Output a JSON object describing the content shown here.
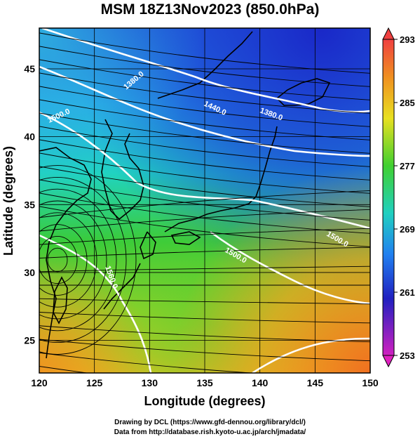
{
  "title": "MSM 18Z13Nov2023 (850.0hPa)",
  "x_axis": {
    "label": "Longitude (degrees)",
    "ticks": [
      "120",
      "125",
      "130",
      "135",
      "140",
      "145",
      "150"
    ],
    "range": [
      120,
      150
    ]
  },
  "y_axis": {
    "label": "Latitude  (degrees)",
    "ticks": [
      "25",
      "30",
      "35",
      "40",
      "45"
    ],
    "range": [
      22.6,
      48
    ]
  },
  "colorbar": {
    "ticks": [
      "293",
      "285",
      "277",
      "269",
      "261",
      "253"
    ],
    "range": [
      253,
      293
    ]
  },
  "contour_labels": [
    "1380.0",
    "1440.0",
    "1380.0",
    "1500.0",
    "1560.0",
    "1500.0",
    "1500.0"
  ],
  "credits": {
    "line1": "Drawing by DCL (https://www.gfd-dennou.org/library/dcl/)",
    "line2": "Data from http://database.rish.kyoto-u.ac.jp/arch/jmadata/"
  },
  "colors": {
    "cold": "#1a2fd0",
    "cyan": "#20d0e0",
    "green": "#30c830",
    "yellow": "#c8e020",
    "orange": "#f08020",
    "contour": "#ffffff",
    "streamline": "#000000"
  }
}
